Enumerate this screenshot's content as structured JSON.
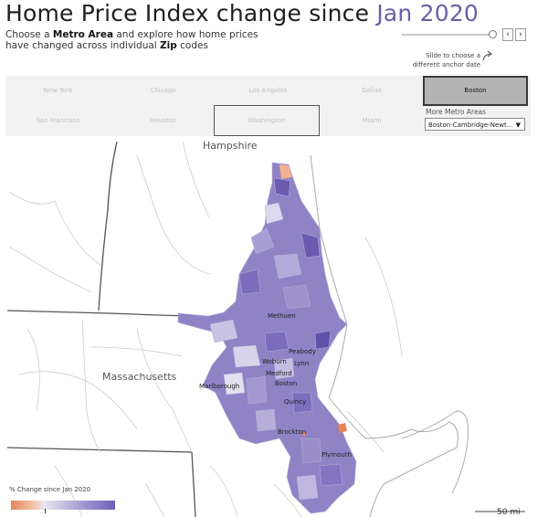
{
  "header": {
    "title_main": "Home Price Index change since ",
    "title_accent": "Jan 2020",
    "subtitle": {
      "line1_pre": "Choose a ",
      "line1_bold1": "Metro Area",
      "line1_post": " and explore how home prices",
      "line2_pre": "have changed across individual ",
      "line2_bold": "Zip",
      "line2_post": " codes"
    }
  },
  "anchor_control": {
    "prev_icon": "‹",
    "next_icon": "›",
    "hint": "Slide to choose a different anchor date"
  },
  "metro_grid": {
    "row1": [
      "New York",
      "Chicago",
      "Los Angeles",
      "Dallas",
      "Boston"
    ],
    "row2": [
      "San Francisco",
      "Houston",
      "Washington",
      "Miami"
    ],
    "selected": "Boston"
  },
  "more_metros": {
    "label": "More Metro Areas",
    "selected_value": "Boston-Cambridge-Newt..."
  },
  "map": {
    "state_labels": [
      "Hampshire",
      "Massachusetts"
    ],
    "cities": [
      "Methuen",
      "Peabody",
      "Lynn",
      "Woburn",
      "Medford",
      "Boston",
      "Marlborough",
      "Quincy",
      "Brockton",
      "Plymouth"
    ],
    "scale_label": "50 mi"
  },
  "legend": {
    "title": "% Change since Jan 2020",
    "low_color": "#e8835a",
    "mid_color": "#e8e6ef",
    "high_color": "#6d5fb8"
  }
}
